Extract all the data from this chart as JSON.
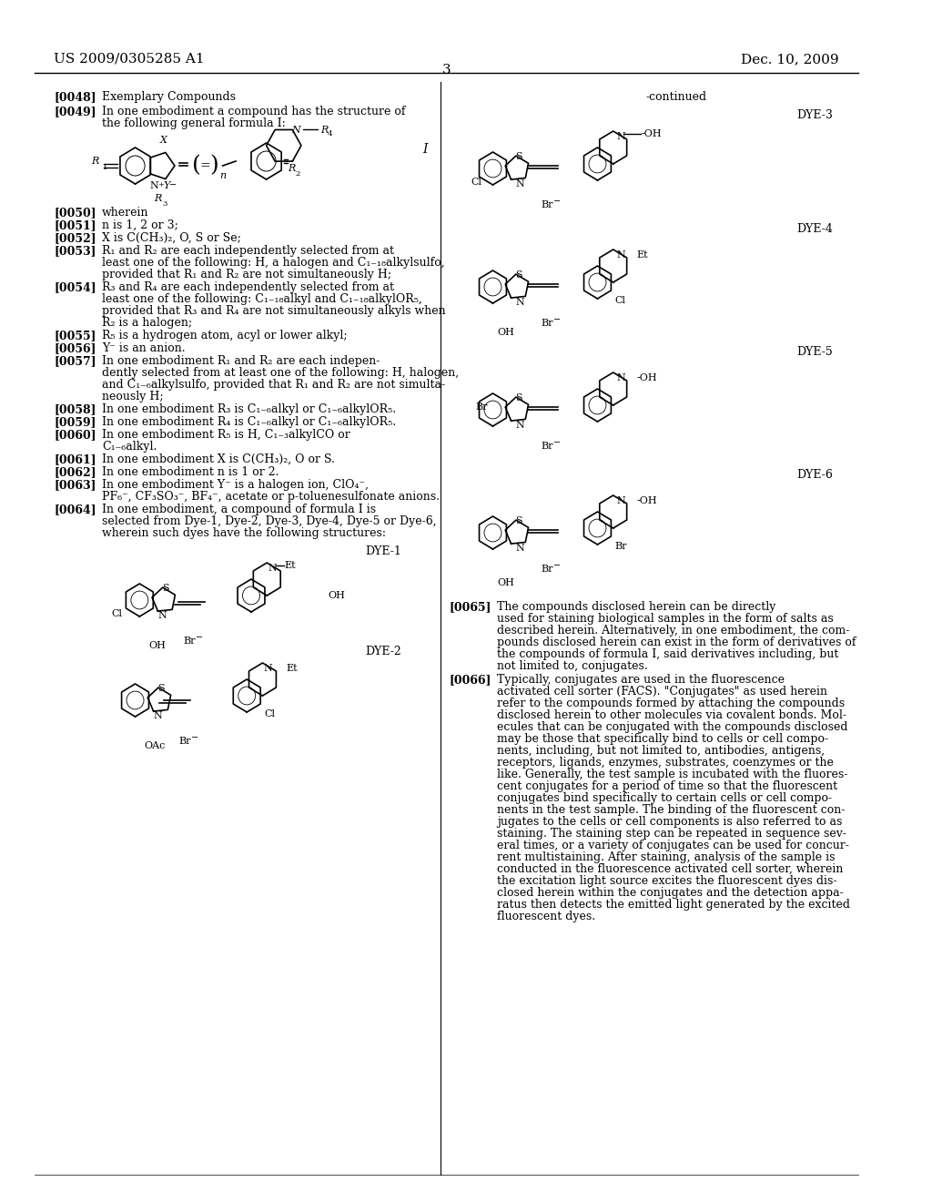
{
  "bg_color": "#ffffff",
  "header_left": "US 2009/0305285 A1",
  "header_right": "Dec. 10, 2009",
  "page_number": "3",
  "font_family": "serif"
}
